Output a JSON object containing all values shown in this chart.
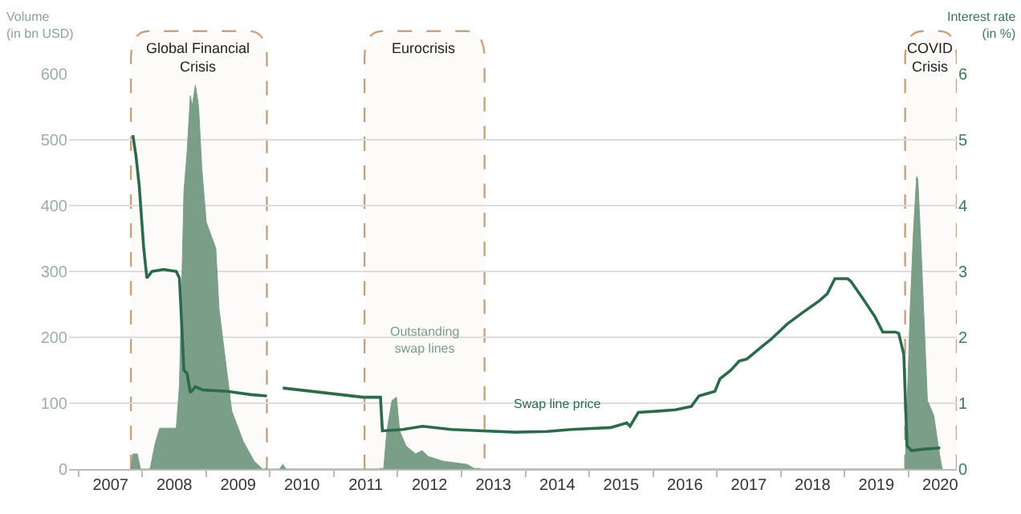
{
  "chart_data": {
    "type": "area",
    "ylabel": "Volume\n(in bn USD)",
    "y2label": "Interest rate\n(in %)",
    "xlim": [
      2006.85,
      2020.76
    ],
    "xticks": [
      {
        "value": 2007,
        "label": null
      },
      {
        "value": 2007.5,
        "label": "2007"
      },
      {
        "value": 2008,
        "label": null
      },
      {
        "value": 2008.5,
        "label": "2008"
      },
      {
        "value": 2009,
        "label": null
      },
      {
        "value": 2009.5,
        "label": "2009"
      },
      {
        "value": 2010,
        "label": null
      },
      {
        "value": 2010.5,
        "label": "2010"
      },
      {
        "value": 2011,
        "label": null
      },
      {
        "value": 2011.5,
        "label": "2011"
      },
      {
        "value": 2012,
        "label": null
      },
      {
        "value": 2012.5,
        "label": "2012"
      },
      {
        "value": 2013,
        "label": null
      },
      {
        "value": 2013.5,
        "label": "2013"
      },
      {
        "value": 2014,
        "label": null
      },
      {
        "value": 2014.5,
        "label": "2014"
      },
      {
        "value": 2015,
        "label": null
      },
      {
        "value": 2015.5,
        "label": "2015"
      },
      {
        "value": 2016,
        "label": null
      },
      {
        "value": 2016.5,
        "label": "2016"
      },
      {
        "value": 2017,
        "label": null
      },
      {
        "value": 2017.5,
        "label": "2017"
      },
      {
        "value": 2018,
        "label": null
      },
      {
        "value": 2018.5,
        "label": "2018"
      },
      {
        "value": 2019,
        "label": null
      },
      {
        "value": 2019.5,
        "label": "2019"
      },
      {
        "value": 2020,
        "label": null
      },
      {
        "value": 2020.5,
        "label": "2020"
      }
    ],
    "ylim": [
      0,
      600
    ],
    "yticks": [
      0,
      100,
      200,
      300,
      400,
      500,
      600
    ],
    "y2lim": [
      0,
      6
    ],
    "y2ticks": [
      0,
      1,
      2,
      3,
      4,
      5,
      6
    ],
    "grid": "y",
    "legend": false,
    "series": [
      {
        "name": "Outstanding swap lines",
        "color": "#7a9e87",
        "x": [
          2007.82,
          2007.85,
          2007.92,
          2007.97,
          2008.02,
          2008.12,
          2008.2,
          2008.27,
          2008.53,
          2008.58,
          2008.65,
          2008.7,
          2008.75,
          2008.78,
          2008.83,
          2008.88,
          2008.93,
          2009.0,
          2009.15,
          2009.2,
          2009.28,
          2009.4,
          2009.58,
          2009.75,
          2009.88,
          2010.15,
          2010.2,
          2010.25,
          2011.78,
          2011.83,
          2011.91,
          2011.98,
          2012.03,
          2012.13,
          2012.28,
          2012.38,
          2012.48,
          2012.71,
          2013.09,
          2013.21,
          2019.95,
          2020.03,
          2020.08,
          2020.13,
          2020.15,
          2020.2,
          2020.3,
          2020.4,
          2020.48,
          2020.53
        ],
        "values": [
          0,
          23,
          23,
          0,
          0,
          0,
          39,
          62,
          62,
          127,
          421,
          481,
          567,
          551,
          583,
          551,
          458,
          375,
          335,
          243,
          181,
          88,
          42,
          12,
          0,
          0,
          7,
          0,
          0,
          58,
          104,
          109,
          58,
          35,
          23,
          28,
          19,
          12,
          7,
          0,
          0,
          243,
          359,
          444,
          440,
          336,
          104,
          81,
          28,
          0
        ]
      },
      {
        "name": "Swap line price",
        "type": "line",
        "axis": "y2",
        "color": "#2d6a4a",
        "x": [
          2007.85,
          2007.9,
          2007.95,
          2008.02,
          2008.07,
          2008.15,
          2008.33,
          2008.53,
          2008.58,
          2008.65,
          2008.7,
          2008.75,
          2008.83,
          2008.95,
          2009.33,
          2009.7,
          2009.95,
          2010.0,
          2010.2,
          2010.83,
          2011.46,
          2011.73,
          2011.76,
          2012.08,
          2012.39,
          2012.84,
          2013.34,
          2013.84,
          2014.34,
          2014.72,
          2015.34,
          2015.59,
          2015.64,
          2015.77,
          2016.09,
          2016.35,
          2016.6,
          2016.72,
          2016.97,
          2017.05,
          2017.22,
          2017.35,
          2017.47,
          2017.72,
          2017.85,
          2018.1,
          2018.35,
          2018.6,
          2018.73,
          2018.85,
          2019.05,
          2019.1,
          2019.28,
          2019.48,
          2019.6,
          2019.8,
          2019.85,
          2019.93,
          2019.98,
          2020.05,
          2020.23,
          2020.5
        ],
        "values": [
          5.07,
          4.75,
          4.3,
          3.36,
          2.9,
          3.0,
          3.03,
          3.0,
          2.9,
          1.5,
          1.45,
          1.16,
          1.25,
          1.2,
          1.18,
          1.13,
          1.11,
          null,
          1.23,
          1.16,
          1.09,
          1.09,
          0.58,
          0.6,
          0.65,
          0.6,
          0.58,
          0.56,
          0.57,
          0.6,
          0.63,
          0.7,
          0.65,
          0.86,
          0.88,
          0.9,
          0.95,
          1.11,
          1.18,
          1.37,
          1.5,
          1.64,
          1.67,
          1.87,
          1.97,
          2.2,
          2.38,
          2.55,
          2.66,
          2.89,
          2.89,
          2.85,
          2.6,
          2.31,
          2.08,
          2.08,
          2.06,
          1.74,
          0.35,
          0.28,
          0.3,
          0.32
        ]
      }
    ],
    "bands": [
      {
        "axis": "x",
        "from": 2007.82,
        "to": 2009.95,
        "label": "Global Financial\nCrisis",
        "color": "#c8a27c"
      },
      {
        "axis": "x",
        "from": 2011.48,
        "to": 2013.36,
        "label": "Eurocrisis",
        "color": "#c8a27c"
      },
      {
        "axis": "x",
        "from": 2019.95,
        "to": 2020.76,
        "label": "COVID\nCrisis",
        "color": "#c8a27c"
      }
    ]
  }
}
